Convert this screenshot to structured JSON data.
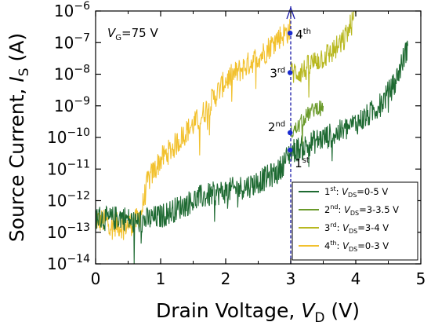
{
  "chart_data": {
    "type": "line",
    "title": "",
    "xlabel": "Drain Voltage, V_D (V)",
    "ylabel": "Source Current, I_S (A)",
    "xlim": [
      0,
      5
    ],
    "ylim_log10": [
      -14,
      -6
    ],
    "y_scale": "log",
    "x_ticks": [
      0,
      1,
      2,
      3,
      4,
      5
    ],
    "y_ticks": [
      "10^-14",
      "10^-13",
      "10^-12",
      "10^-11",
      "10^-10",
      "10^-9",
      "10^-8",
      "10^-7",
      "10^-6"
    ],
    "grid": false,
    "legend_position": "bottom-right",
    "annotation": "V_G=75 V",
    "series": [
      {
        "name": "1st: V_DS=0-5 V",
        "color": "#1e6a32",
        "points": [
          [
            0,
            -12.5
          ],
          [
            0.2,
            -12.6
          ],
          [
            0.4,
            -12.5
          ],
          [
            0.6,
            -12.7
          ],
          [
            0.8,
            -12.6
          ],
          [
            1.0,
            -12.5
          ],
          [
            1.2,
            -12.3
          ],
          [
            1.4,
            -12.1
          ],
          [
            1.6,
            -11.9
          ],
          [
            1.8,
            -11.8
          ],
          [
            2.0,
            -11.7
          ],
          [
            2.2,
            -11.6
          ],
          [
            2.4,
            -11.5
          ],
          [
            2.6,
            -11.3
          ],
          [
            2.8,
            -11.1
          ],
          [
            3.0,
            -10.45
          ],
          [
            3.2,
            -10.3
          ],
          [
            3.4,
            -10.1
          ],
          [
            3.6,
            -9.95
          ],
          [
            3.8,
            -9.8
          ],
          [
            4.0,
            -9.55
          ],
          [
            4.2,
            -9.3
          ],
          [
            4.4,
            -8.9
          ],
          [
            4.6,
            -8.3
          ],
          [
            4.8,
            -7.1
          ]
        ],
        "noise": 0.4
      },
      {
        "name": "2nd: V_DS=3-3.5 V",
        "color": "#6a9a2a",
        "points": [
          [
            3.0,
            -9.85
          ],
          [
            3.1,
            -9.7
          ],
          [
            3.2,
            -9.4
          ],
          [
            3.3,
            -9.2
          ],
          [
            3.4,
            -9.05
          ],
          [
            3.5,
            -9.0
          ]
        ],
        "noise": 0.25
      },
      {
        "name": "3rd: V_DS=3-4 V",
        "color": "#b8b820",
        "points": [
          [
            3.0,
            -7.95
          ],
          [
            3.2,
            -7.9
          ],
          [
            3.4,
            -7.55
          ],
          [
            3.6,
            -7.35
          ],
          [
            3.8,
            -7.0
          ],
          [
            4.0,
            -6.1
          ]
        ],
        "noise": 0.4
      },
      {
        "name": "4th: V_DS=0-3 V",
        "color": "#f2c12e",
        "points": [
          [
            0,
            -12.6
          ],
          [
            0.2,
            -12.7
          ],
          [
            0.4,
            -12.8
          ],
          [
            0.6,
            -12.7
          ],
          [
            0.7,
            -12.4
          ],
          [
            0.8,
            -11.4
          ],
          [
            1.0,
            -10.7
          ],
          [
            1.2,
            -10.3
          ],
          [
            1.4,
            -9.8
          ],
          [
            1.6,
            -9.4
          ],
          [
            1.8,
            -8.8
          ],
          [
            2.0,
            -8.2
          ],
          [
            2.2,
            -7.9
          ],
          [
            2.4,
            -7.6
          ],
          [
            2.6,
            -7.3
          ],
          [
            2.8,
            -6.85
          ],
          [
            3.0,
            -6.6
          ]
        ],
        "noise": 0.4
      }
    ],
    "markers": [
      {
        "label": "1st",
        "x": 2.99,
        "y_log10": -10.4
      },
      {
        "label": "2nd",
        "x": 2.99,
        "y_log10": -9.85
      },
      {
        "label": "3rd",
        "x": 2.99,
        "y_log10": -7.95
      },
      {
        "label": "4th",
        "x": 2.99,
        "y_log10": -6.7
      }
    ],
    "dashed_arrow": {
      "x": 3.0,
      "from_log10": -14,
      "to_log10": -6
    }
  }
}
